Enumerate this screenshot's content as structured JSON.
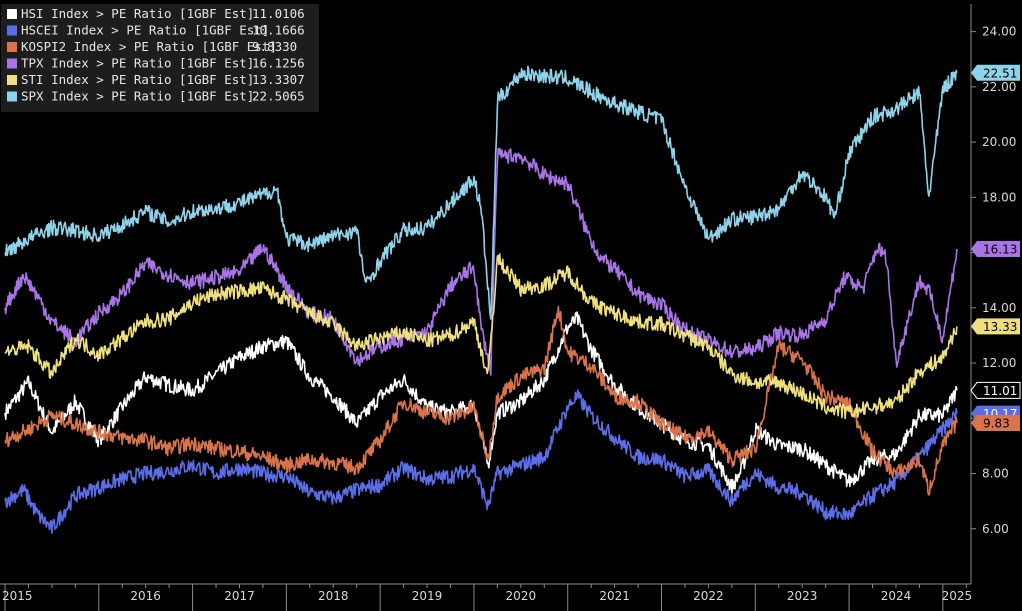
{
  "chart_data": {
    "type": "line",
    "title": "",
    "xlabel": "",
    "ylabel": "",
    "x_range": [
      2015.0,
      2025.3
    ],
    "ylim": [
      4.0,
      25.0
    ],
    "y_ticks": [
      "6.00",
      "8.00",
      "10.00",
      "12.00",
      "14.00",
      "16.00",
      "18.00",
      "20.00",
      "22.00",
      "24.00"
    ],
    "x_ticks": [
      "2015",
      "2016",
      "2017",
      "2018",
      "2019",
      "2020",
      "2021",
      "2022",
      "2023",
      "2024",
      "2025"
    ],
    "grid": false,
    "legend_position": "top-left",
    "series": [
      {
        "name": "HSI Index > PE Ratio [1GBF Est]",
        "last_value": "11.0106",
        "badge": "11.01",
        "color": "#ffffff",
        "x": [
          2015.0,
          2015.25,
          2015.5,
          2015.75,
          2016.0,
          2016.25,
          2016.5,
          2016.75,
          2017.0,
          2017.25,
          2017.5,
          2017.75,
          2018.0,
          2018.25,
          2018.5,
          2018.75,
          2019.0,
          2019.25,
          2019.5,
          2019.75,
          2020.0,
          2020.15,
          2020.25,
          2020.5,
          2020.75,
          2021.0,
          2021.1,
          2021.25,
          2021.5,
          2021.75,
          2022.0,
          2022.25,
          2022.5,
          2022.75,
          2022.85,
          2023.0,
          2023.25,
          2023.5,
          2023.75,
          2024.0,
          2024.25,
          2024.5,
          2024.75,
          2025.0,
          2025.15
        ],
        "y": [
          10.2,
          11.3,
          9.5,
          10.6,
          9.2,
          10.4,
          11.5,
          11.2,
          11.0,
          11.6,
          12.2,
          12.6,
          12.8,
          11.5,
          10.8,
          9.8,
          10.8,
          11.4,
          10.4,
          10.2,
          10.5,
          8.3,
          10.2,
          10.6,
          11.4,
          13.3,
          13.6,
          12.5,
          11.2,
          10.4,
          9.8,
          9.2,
          9.0,
          7.5,
          8.1,
          9.6,
          9.0,
          8.9,
          8.3,
          7.7,
          8.5,
          8.7,
          10.1,
          10.1,
          11.01
        ]
      },
      {
        "name": "HSCEI Index > PE Ratio [1GBF Est]",
        "last_value": "10.1666",
        "badge": "10.17",
        "color": "#5b6ee8",
        "x": [
          2015.0,
          2015.2,
          2015.35,
          2015.5,
          2015.75,
          2016.0,
          2016.25,
          2016.5,
          2016.75,
          2017.0,
          2017.25,
          2017.5,
          2017.75,
          2018.0,
          2018.25,
          2018.5,
          2018.75,
          2019.0,
          2019.25,
          2019.5,
          2019.75,
          2020.0,
          2020.15,
          2020.25,
          2020.5,
          2020.75,
          2021.0,
          2021.1,
          2021.25,
          2021.5,
          2021.75,
          2022.0,
          2022.25,
          2022.5,
          2022.75,
          2022.85,
          2023.0,
          2023.25,
          2023.5,
          2023.75,
          2024.0,
          2024.25,
          2024.5,
          2024.75,
          2025.0,
          2025.15
        ],
        "y": [
          7.0,
          7.4,
          6.5,
          6.0,
          7.2,
          7.5,
          7.8,
          8.0,
          8.1,
          8.3,
          8.0,
          8.2,
          8.0,
          7.9,
          7.3,
          7.1,
          7.4,
          7.6,
          8.2,
          7.8,
          7.9,
          8.2,
          6.8,
          8.0,
          8.3,
          8.6,
          10.4,
          10.8,
          10.1,
          9.3,
          8.6,
          8.5,
          7.9,
          8.1,
          7.0,
          7.5,
          8.0,
          7.5,
          7.3,
          6.6,
          6.5,
          7.2,
          7.7,
          8.6,
          9.6,
          10.17
        ]
      },
      {
        "name": "KOSPI2 Index > PE Ratio [1GBF Est]",
        "last_value": "9.8330",
        "badge": "9.83",
        "color": "#d9734a",
        "x": [
          2015.0,
          2015.25,
          2015.5,
          2015.75,
          2016.0,
          2016.25,
          2016.5,
          2016.75,
          2017.0,
          2017.25,
          2017.5,
          2017.75,
          2018.0,
          2018.25,
          2018.5,
          2018.75,
          2019.0,
          2019.25,
          2019.5,
          2019.75,
          2020.0,
          2020.15,
          2020.25,
          2020.5,
          2020.75,
          2020.9,
          2021.0,
          2021.25,
          2021.5,
          2021.75,
          2022.0,
          2022.25,
          2022.5,
          2022.75,
          2023.0,
          2023.25,
          2023.5,
          2023.75,
          2024.0,
          2024.25,
          2024.5,
          2024.75,
          2024.85,
          2025.0,
          2025.15
        ],
        "y": [
          9.2,
          9.6,
          10.1,
          9.8,
          9.5,
          9.3,
          9.2,
          8.9,
          9.1,
          8.9,
          8.8,
          8.6,
          8.3,
          8.5,
          8.4,
          8.2,
          9.2,
          10.6,
          10.2,
          10.0,
          10.4,
          8.5,
          10.8,
          11.5,
          11.8,
          14.0,
          12.4,
          11.9,
          10.8,
          10.6,
          9.8,
          9.3,
          9.5,
          8.5,
          8.9,
          12.6,
          12.1,
          10.8,
          10.5,
          8.8,
          8.0,
          8.5,
          7.4,
          9.0,
          9.83
        ]
      },
      {
        "name": "TPX Index > PE Ratio [1GBF Est]",
        "last_value": "16.1256",
        "badge": "16.13",
        "color": "#a874e8",
        "x": [
          2015.0,
          2015.2,
          2015.35,
          2015.5,
          2015.75,
          2016.0,
          2016.25,
          2016.5,
          2016.75,
          2017.0,
          2017.25,
          2017.5,
          2017.75,
          2018.0,
          2018.25,
          2018.5,
          2018.75,
          2019.0,
          2019.25,
          2019.5,
          2019.75,
          2020.0,
          2020.08,
          2020.18,
          2020.25,
          2020.5,
          2020.75,
          2021.0,
          2021.2,
          2021.35,
          2021.5,
          2021.75,
          2022.0,
          2022.25,
          2022.5,
          2022.75,
          2023.0,
          2023.25,
          2023.5,
          2023.75,
          2023.95,
          2024.15,
          2024.3,
          2024.4,
          2024.5,
          2024.75,
          2024.85,
          2025.0,
          2025.15
        ],
        "y": [
          14.0,
          15.2,
          14.4,
          13.5,
          12.8,
          13.8,
          14.5,
          15.6,
          15.2,
          14.9,
          15.1,
          15.3,
          16.2,
          14.8,
          13.8,
          13.6,
          12.1,
          12.6,
          12.9,
          13.1,
          14.8,
          15.5,
          13.2,
          11.8,
          19.5,
          19.5,
          18.8,
          18.5,
          16.8,
          15.8,
          15.4,
          14.5,
          14.1,
          13.2,
          12.8,
          12.4,
          12.5,
          13.1,
          13.0,
          13.6,
          15.1,
          14.7,
          16.2,
          15.8,
          12.0,
          15.0,
          14.6,
          12.9,
          16.13
        ]
      },
      {
        "name": "STI Index > PE Ratio [1GBF Est]",
        "last_value": "13.3307",
        "badge": "13.33",
        "color": "#efe07e",
        "x": [
          2015.0,
          2015.25,
          2015.5,
          2015.75,
          2016.0,
          2016.25,
          2016.5,
          2016.75,
          2017.0,
          2017.25,
          2017.5,
          2017.75,
          2018.0,
          2018.25,
          2018.5,
          2018.75,
          2019.0,
          2019.25,
          2019.5,
          2019.75,
          2020.0,
          2020.15,
          2020.25,
          2020.5,
          2020.75,
          2021.0,
          2021.25,
          2021.5,
          2021.75,
          2022.0,
          2022.25,
          2022.5,
          2022.75,
          2023.0,
          2023.25,
          2023.5,
          2023.75,
          2024.0,
          2024.25,
          2024.5,
          2024.75,
          2025.0,
          2025.15
        ],
        "y": [
          12.4,
          12.6,
          11.6,
          12.9,
          12.3,
          12.9,
          13.5,
          13.6,
          14.2,
          14.5,
          14.6,
          14.7,
          14.3,
          13.8,
          13.4,
          12.6,
          12.9,
          13.1,
          12.8,
          13.0,
          13.5,
          11.5,
          15.8,
          14.7,
          14.8,
          15.3,
          14.2,
          13.8,
          13.5,
          13.4,
          13.0,
          12.6,
          11.6,
          11.3,
          11.3,
          10.9,
          10.4,
          10.2,
          10.4,
          10.6,
          11.7,
          12.2,
          13.33
        ]
      },
      {
        "name": "SPX Index > PE Ratio [1GBF Est]",
        "last_value": "22.5065",
        "badge": "22.51",
        "color": "#8fd3ea",
        "x": [
          2015.0,
          2015.25,
          2015.5,
          2015.75,
          2016.0,
          2016.25,
          2016.5,
          2016.75,
          2017.0,
          2017.25,
          2017.5,
          2017.75,
          2017.9,
          2018.0,
          2018.25,
          2018.5,
          2018.75,
          2018.85,
          2019.0,
          2019.25,
          2019.5,
          2019.75,
          2020.0,
          2020.08,
          2020.18,
          2020.25,
          2020.5,
          2020.75,
          2021.0,
          2021.25,
          2021.5,
          2021.75,
          2022.0,
          2022.25,
          2022.5,
          2022.75,
          2023.0,
          2023.25,
          2023.5,
          2023.75,
          2023.85,
          2024.0,
          2024.25,
          2024.5,
          2024.75,
          2024.85,
          2025.0,
          2025.15
        ],
        "y": [
          16.0,
          16.5,
          16.9,
          16.8,
          16.6,
          17.0,
          17.5,
          17.1,
          17.5,
          17.6,
          17.8,
          18.1,
          18.3,
          16.5,
          16.3,
          16.6,
          16.8,
          14.8,
          15.7,
          16.8,
          16.9,
          17.8,
          18.7,
          17.5,
          13.5,
          21.5,
          22.5,
          22.4,
          22.3,
          21.8,
          21.4,
          21.1,
          20.8,
          18.4,
          16.5,
          17.2,
          17.3,
          17.6,
          18.9,
          18.0,
          17.3,
          19.6,
          20.9,
          21.2,
          21.8,
          18.0,
          21.9,
          22.51
        ]
      }
    ]
  }
}
